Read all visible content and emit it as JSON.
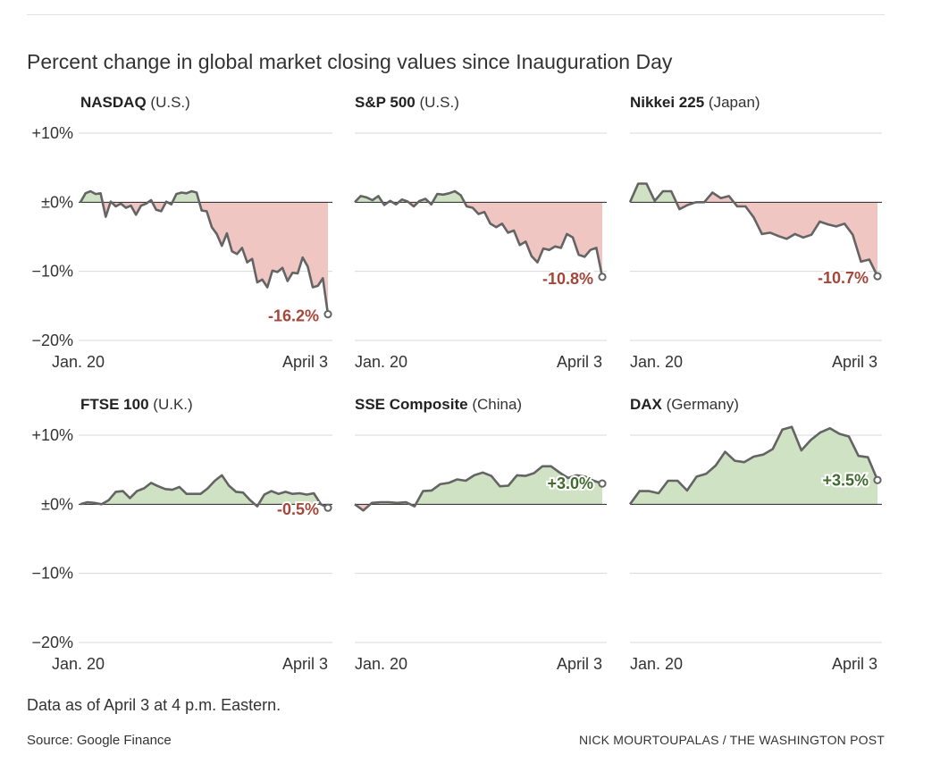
{
  "title": "Percent change in global market closing values since Inauguration Day",
  "note": "Data as of April 3 at 4 p.m. Eastern.",
  "source": "Source: Google Finance",
  "credit": "NICK MOURTOUPALAS / THE WASHINGTON POST",
  "colors": {
    "positive_fill": "#cfe2c4",
    "negative_fill": "#f0c6c3",
    "line": "#646464",
    "positive_label": "#3f6b2e",
    "negative_label": "#a4473a",
    "grid": "#d8d8d8",
    "zero_line": "#222222"
  },
  "chart_data": [
    {
      "type": "area",
      "name": "NASDAQ",
      "country": "(U.S.)",
      "ylim": [
        -20,
        10
      ],
      "yticks": [
        "+10%",
        "±0%",
        "−10%",
        "−20%"
      ],
      "xticks": [
        "Jan. 20",
        "April 3"
      ],
      "final_label": "-16.2%",
      "values": [
        0,
        1.3,
        1.6,
        1.2,
        1.3,
        -2.1,
        0.1,
        -0.6,
        -0.2,
        -0.8,
        -0.5,
        -1.8,
        -0.5,
        -0.2,
        0.3,
        -1.1,
        -1.3,
        0.1,
        -0.3,
        1.2,
        1.4,
        1.3,
        1.6,
        1.4,
        -1.2,
        -1.3,
        -3.6,
        -4.6,
        -6.3,
        -4.5,
        -7.1,
        -7.5,
        -6.6,
        -8.7,
        -8.2,
        -11.6,
        -11.2,
        -12.3,
        -9.9,
        -10.1,
        -9.5,
        -11.4,
        -10.2,
        -10.3,
        -8.0,
        -9.3,
        -12.3,
        -12.1,
        -11.0,
        -16.2
      ]
    },
    {
      "type": "area",
      "name": "S&P 500",
      "country": "(U.S.)",
      "ylim": [
        -20,
        10
      ],
      "yticks": [],
      "xticks": [
        "Jan. 20",
        "April 3"
      ],
      "final_label": "-10.8%",
      "values": [
        0,
        0.9,
        0.7,
        0.3,
        0.9,
        -0.4,
        0.2,
        -0.3,
        0.4,
        0.1,
        -0.6,
        0.2,
        0.5,
        -0.3,
        1.2,
        1.1,
        1.3,
        1.6,
        1.0,
        -0.6,
        -0.8,
        -1.7,
        -1.4,
        -3.1,
        -3.6,
        -3.1,
        -4.4,
        -4.1,
        -6.2,
        -5.7,
        -7.8,
        -8.7,
        -6.7,
        -6.9,
        -6.4,
        -6.6,
        -4.6,
        -5.1,
        -7.6,
        -7.9,
        -6.9,
        -6.6,
        -10.8
      ]
    },
    {
      "type": "area",
      "name": "Nikkei 225",
      "country": "(Japan)",
      "ylim": [
        -20,
        10
      ],
      "yticks": [],
      "xticks": [
        "Jan. 20",
        "April 3"
      ],
      "final_label": "-10.7%",
      "values": [
        0,
        2.7,
        2.7,
        0.2,
        1.6,
        1.6,
        -1.0,
        -0.4,
        0.0,
        0.0,
        1.4,
        0.6,
        0.9,
        -0.6,
        -0.6,
        -2.2,
        -4.6,
        -4.4,
        -4.9,
        -5.3,
        -4.6,
        -5.1,
        -4.7,
        -2.8,
        -3.2,
        -3.5,
        -3.1,
        -4.7,
        -8.6,
        -8.3,
        -10.7
      ]
    },
    {
      "type": "area",
      "name": "FTSE 100",
      "country": "(U.K.)",
      "ylim": [
        -20,
        10
      ],
      "yticks": [
        "+10%",
        "±0%",
        "−10%",
        "−20%"
      ],
      "xticks": [
        "Jan. 20",
        "April 3"
      ],
      "final_label": "-0.5%",
      "values": [
        0,
        0.3,
        0.2,
        0.0,
        0.6,
        1.8,
        1.9,
        0.9,
        1.9,
        2.3,
        3.1,
        2.6,
        2.2,
        2.1,
        2.5,
        1.5,
        1.5,
        1.5,
        2.3,
        3.4,
        4.2,
        2.7,
        1.8,
        1.7,
        0.6,
        -0.3,
        1.4,
        1.9,
        1.5,
        1.8,
        1.5,
        1.6,
        1.4,
        1.6,
        0.0,
        -0.5
      ]
    },
    {
      "type": "area",
      "name": "SSE Composite",
      "country": "(China)",
      "ylim": [
        -20,
        10
      ],
      "yticks": [],
      "xticks": [
        "Jan. 20",
        "April 3"
      ],
      "final_label": "+3.0%",
      "values": [
        0,
        -0.9,
        0.2,
        0.3,
        0.3,
        0.2,
        0.3,
        -0.3,
        1.9,
        2.0,
        2.9,
        3.1,
        3.6,
        3.4,
        4.2,
        4.6,
        4.1,
        2.6,
        2.7,
        4.2,
        4.1,
        4.5,
        5.5,
        5.5,
        4.6,
        3.8,
        4.2,
        4.0,
        3.4,
        3.0
      ]
    },
    {
      "type": "area",
      "name": "DAX",
      "country": "(Germany)",
      "ylim": [
        -20,
        10
      ],
      "yticks": [],
      "xticks": [
        "Jan. 20",
        "April 3"
      ],
      "final_label": "+3.5%",
      "values": [
        0,
        1.9,
        1.9,
        1.6,
        3.4,
        3.4,
        2.0,
        4.0,
        4.4,
        5.6,
        7.6,
        6.3,
        6.1,
        6.9,
        7.2,
        8.0,
        10.8,
        11.2,
        7.8,
        9.3,
        10.4,
        11.0,
        10.2,
        9.8,
        7.0,
        6.8,
        3.5
      ]
    }
  ]
}
